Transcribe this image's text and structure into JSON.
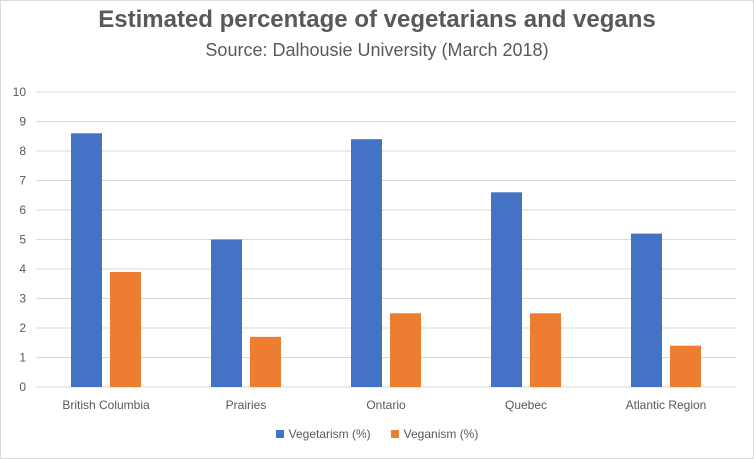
{
  "colors": {
    "vegetarism": "#4472c4",
    "veganism": "#ed7d31",
    "grid": "#d9d9d9",
    "text": "#595959"
  },
  "chart_data": {
    "type": "bar",
    "title": "Estimated percentage of vegetarians and vegans",
    "subtitle": "Source: Dalhousie University (March 2018)",
    "categories": [
      "British Columbia",
      "Prairies",
      "Ontario",
      "Quebec",
      "Atlantic Region"
    ],
    "series": [
      {
        "name": "Vegetarism (%)",
        "values": [
          8.6,
          5.0,
          8.4,
          6.6,
          5.2
        ]
      },
      {
        "name": "Veganism (%)",
        "values": [
          3.9,
          1.7,
          2.5,
          2.5,
          1.4
        ]
      }
    ],
    "ylim": [
      0,
      10
    ],
    "yticks": [
      "0",
      "1",
      "2",
      "3",
      "4",
      "5",
      "6",
      "7",
      "8",
      "9",
      "10"
    ],
    "grid": true,
    "legend_position": "bottom"
  }
}
